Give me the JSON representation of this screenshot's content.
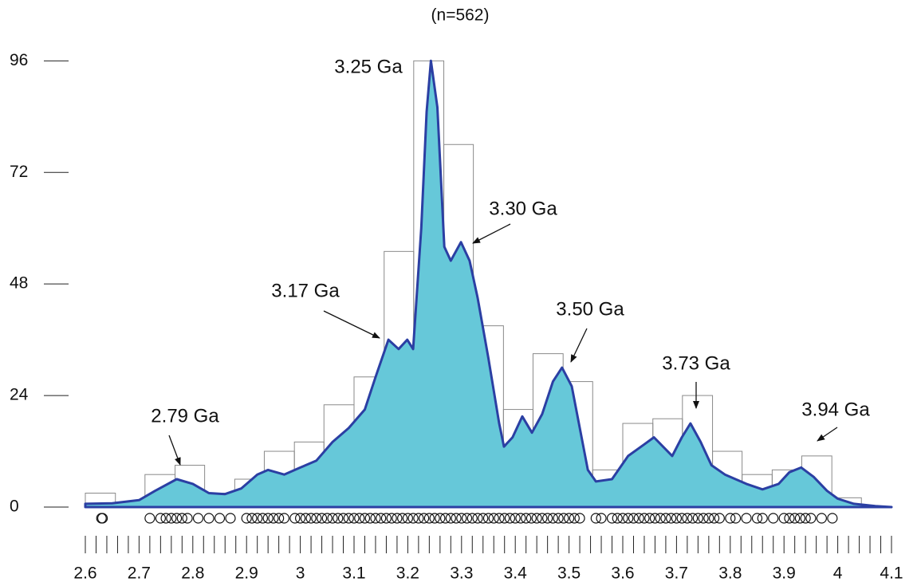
{
  "chart_data": {
    "type": "histogram",
    "title": "(n=562)",
    "bins": [
      2.6,
      2.656,
      2.711,
      2.767,
      2.822,
      2.878,
      2.933,
      2.989,
      3.044,
      3.1,
      3.156,
      3.211,
      3.267,
      3.322,
      3.378,
      3.433,
      3.489,
      3.544,
      3.6,
      3.656,
      3.711,
      3.767,
      3.822,
      3.878,
      3.933,
      3.989,
      4.044,
      4.1
    ],
    "counts": [
      3,
      0,
      7,
      9,
      3,
      6,
      12,
      14,
      22,
      28,
      55,
      96,
      78,
      39,
      21,
      33,
      27,
      8,
      18,
      19,
      24,
      12,
      7,
      8,
      11,
      2,
      0
    ],
    "bar_color": "#8a8a8a",
    "kde": {
      "x": [
        2.6,
        2.65,
        2.7,
        2.73,
        2.77,
        2.8,
        2.83,
        2.86,
        2.89,
        2.92,
        2.94,
        2.97,
        3.0,
        3.03,
        3.06,
        3.09,
        3.12,
        3.14,
        3.164,
        3.183,
        3.199,
        3.21,
        3.225,
        3.235,
        3.243,
        3.255,
        3.268,
        3.28,
        3.299,
        3.315,
        3.33,
        3.35,
        3.37,
        3.379,
        3.395,
        3.413,
        3.431,
        3.45,
        3.47,
        3.487,
        3.505,
        3.52,
        3.535,
        3.55,
        3.58,
        3.61,
        3.64,
        3.658,
        3.675,
        3.692,
        3.71,
        3.726,
        3.745,
        3.765,
        3.79,
        3.83,
        3.86,
        3.89,
        3.91,
        3.932,
        3.955,
        3.98,
        4.0,
        4.03,
        4.07,
        4.1
      ],
      "values": [
        0.7,
        0.8,
        1.5,
        3.5,
        6,
        5,
        3,
        2.8,
        4,
        7,
        8,
        7,
        8.5,
        10,
        14,
        17,
        21,
        28,
        36,
        34,
        36,
        34,
        60,
        85,
        96,
        86,
        56,
        53,
        57,
        53,
        45,
        32,
        18,
        13,
        15,
        19.5,
        16,
        20,
        27,
        30,
        26,
        17,
        8,
        5.5,
        6,
        11,
        13.5,
        15,
        13,
        11,
        15,
        18,
        14,
        9,
        7,
        5,
        3.8,
        5,
        7.5,
        8.5,
        6.5,
        3.5,
        1.8,
        0.7,
        0.2,
        0
      ],
      "color": "#66c8d9",
      "line_color": "#2b3fa3"
    },
    "rug": [
      2.63,
      2.632,
      2.72,
      2.74,
      2.75,
      2.76,
      2.77,
      2.78,
      2.79,
      2.81,
      2.83,
      2.85,
      2.87,
      2.9,
      2.91,
      2.92,
      2.93,
      2.94,
      2.95,
      2.96,
      2.97,
      2.99,
      3.0,
      3.01,
      3.02,
      3.03,
      3.04,
      3.05,
      3.06,
      3.07,
      3.08,
      3.09,
      3.1,
      3.11,
      3.12,
      3.13,
      3.14,
      3.15,
      3.16,
      3.17,
      3.18,
      3.19,
      3.2,
      3.21,
      3.22,
      3.23,
      3.24,
      3.25,
      3.26,
      3.27,
      3.28,
      3.29,
      3.3,
      3.31,
      3.32,
      3.33,
      3.34,
      3.35,
      3.36,
      3.37,
      3.38,
      3.39,
      3.4,
      3.41,
      3.42,
      3.43,
      3.44,
      3.45,
      3.46,
      3.47,
      3.48,
      3.49,
      3.5,
      3.51,
      3.52,
      3.55,
      3.56,
      3.58,
      3.59,
      3.6,
      3.61,
      3.62,
      3.63,
      3.64,
      3.65,
      3.66,
      3.67,
      3.68,
      3.69,
      3.7,
      3.71,
      3.72,
      3.73,
      3.74,
      3.75,
      3.76,
      3.77,
      3.78,
      3.8,
      3.81,
      3.83,
      3.85,
      3.86,
      3.88,
      3.9,
      3.91,
      3.92,
      3.93,
      3.94,
      3.95,
      3.97,
      3.99
    ],
    "annotations": [
      {
        "text": "3.25 Ga"
      },
      {
        "text": "3.30 Ga"
      },
      {
        "text": "3.17 Ga"
      },
      {
        "text": "3.50 Ga"
      },
      {
        "text": "3.73 Ga"
      },
      {
        "text": "3.94 Ga"
      },
      {
        "text": "2.79 Ga"
      }
    ],
    "xlim": [
      2.6,
      4.1
    ],
    "xticks": [
      2.6,
      2.7,
      2.8,
      2.9,
      3,
      3.1,
      3.2,
      3.3,
      3.4,
      3.5,
      3.6,
      3.7,
      3.8,
      3.9,
      4,
      4.1
    ],
    "xminorticks": [
      2.62,
      2.64,
      2.66,
      2.68,
      2.72,
      2.74,
      2.76,
      2.78,
      2.82,
      2.84,
      2.86,
      2.88,
      2.92,
      2.94,
      2.96,
      2.98,
      3.02,
      3.04,
      3.06,
      3.08,
      3.12,
      3.14,
      3.16,
      3.18,
      3.22,
      3.24,
      3.26,
      3.28,
      3.32,
      3.34,
      3.36,
      3.38,
      3.42,
      3.44,
      3.46,
      3.48,
      3.52,
      3.54,
      3.56,
      3.58,
      3.62,
      3.64,
      3.66,
      3.68,
      3.72,
      3.74,
      3.76,
      3.78,
      3.82,
      3.84,
      3.86,
      3.88,
      3.92,
      3.94,
      3.96,
      3.98,
      4.02,
      4.04,
      4.06,
      4.08
    ],
    "ylim": [
      0,
      100
    ],
    "yticks": [
      0,
      24,
      48,
      72,
      96
    ]
  }
}
